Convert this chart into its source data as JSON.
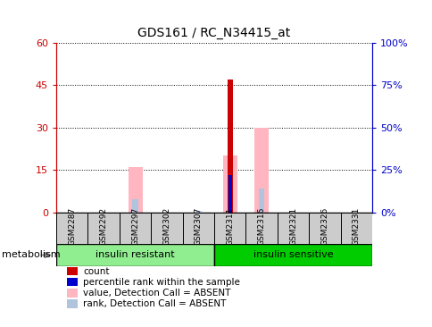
{
  "title": "GDS161 / RC_N34415_at",
  "samples": [
    "GSM2287",
    "GSM2292",
    "GSM2297",
    "GSM2302",
    "GSM2307",
    "GSM2311",
    "GSM2316",
    "GSM2321",
    "GSM2326",
    "GSM2331"
  ],
  "groups": [
    {
      "label": "insulin resistant",
      "start": 0,
      "end": 5,
      "color": "#90EE90"
    },
    {
      "label": "insulin sensitive",
      "start": 5,
      "end": 10,
      "color": "#00CC00"
    }
  ],
  "group_label": "metabolism",
  "ylim_left": [
    0,
    60
  ],
  "ylim_right": [
    0,
    100
  ],
  "yticks_left": [
    0,
    15,
    30,
    45,
    60
  ],
  "yticks_right": [
    0,
    25,
    50,
    75,
    100
  ],
  "ytick_labels_left": [
    "0",
    "15",
    "30",
    "45",
    "60"
  ],
  "ytick_labels_right": [
    "0%",
    "25%",
    "50%",
    "75%",
    "100%"
  ],
  "count_values": [
    0,
    0,
    0,
    0,
    0,
    47,
    0,
    0,
    0,
    0
  ],
  "percentile_rank_values": [
    0,
    0,
    0,
    0,
    0,
    22,
    0,
    0,
    0,
    0
  ],
  "absent_value_values": [
    0,
    0,
    16,
    0,
    0,
    20,
    30,
    0,
    0,
    0
  ],
  "absent_rank_values": [
    0,
    0,
    8,
    0,
    1,
    0,
    14,
    0,
    0,
    0
  ],
  "count_color": "#CC0000",
  "percentile_rank_color": "#0000CC",
  "absent_value_color": "#FFB6C1",
  "absent_rank_color": "#B0C4DE",
  "background_color": "#ffffff",
  "sample_box_color": "#cccccc",
  "legend_items": [
    {
      "color": "#CC0000",
      "label": "count"
    },
    {
      "color": "#0000CC",
      "label": "percentile rank within the sample"
    },
    {
      "color": "#FFB6C1",
      "label": "value, Detection Call = ABSENT"
    },
    {
      "color": "#B0C4DE",
      "label": "rank, Detection Call = ABSENT"
    }
  ]
}
